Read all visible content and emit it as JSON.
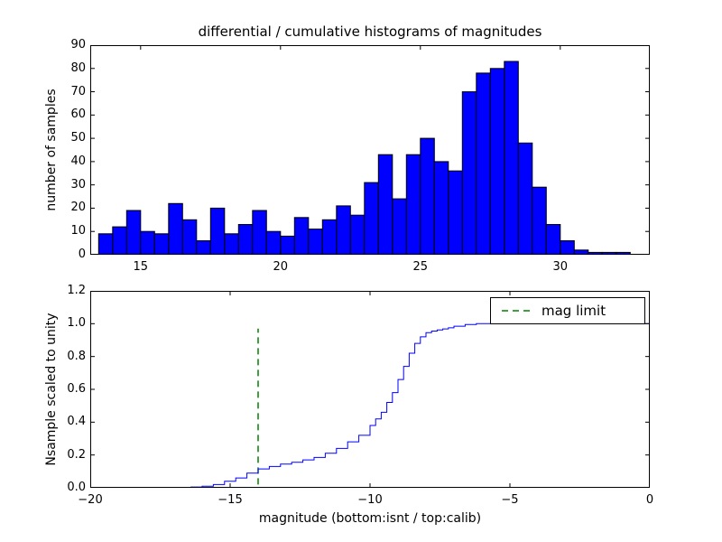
{
  "figure": {
    "title": "differential / cumulative histograms of magnitudes",
    "background": "#ffffff",
    "top": {
      "ylabel": "number of samples"
    },
    "bottom": {
      "ylabel": "Nsample scaled to unity",
      "xlabel": "magnitude (bottom:isnt / top:calib)",
      "legend_label": "mag limit"
    }
  },
  "chart_data": [
    {
      "type": "bar",
      "title": "differential / cumulative histograms of magnitudes",
      "ylabel": "number of samples",
      "xlabel": "",
      "bin_start": 13.5,
      "bin_width": 0.5,
      "values": [
        9,
        12,
        19,
        10,
        9,
        22,
        15,
        6,
        20,
        9,
        13,
        19,
        10,
        8,
        16,
        11,
        15,
        21,
        17,
        31,
        43,
        24,
        43,
        50,
        40,
        36,
        70,
        78,
        80,
        83,
        48,
        29,
        13,
        6,
        2,
        1,
        1,
        1
      ],
      "xlim": [
        13.2,
        33.2
      ],
      "ylim": [
        0,
        90
      ],
      "xticks": [
        15,
        20,
        25,
        30
      ],
      "xtick_labels": [
        "15",
        "20",
        "25",
        "30"
      ],
      "yticks": [
        0,
        10,
        20,
        30,
        40,
        50,
        60,
        70,
        80,
        90
      ],
      "ytick_labels": [
        "0",
        "10",
        "20",
        "30",
        "40",
        "50",
        "60",
        "70",
        "80",
        "90"
      ],
      "bar_color": "#0000ff",
      "bar_edge": "#000000",
      "grid": false
    },
    {
      "type": "line",
      "ylabel": "Nsample scaled to unity",
      "xlabel": "magnitude (bottom:isnt / top:calib)",
      "xlim": [
        -20,
        0
      ],
      "ylim": [
        0,
        1.2
      ],
      "xticks": [
        -20,
        -15,
        -10,
        -5,
        0
      ],
      "xtick_labels": [
        "−20",
        "−15",
        "−10",
        "−5",
        "0"
      ],
      "yticks": [
        0,
        0.2,
        0.4,
        0.6,
        0.8,
        1.0,
        1.2
      ],
      "ytick_labels": [
        "0.0",
        "0.2",
        "0.4",
        "0.6",
        "0.8",
        "1.0",
        "1.2"
      ],
      "line_color": "#0000ff",
      "line_style": "steps",
      "points": [
        [
          -20,
          0
        ],
        [
          -16.4,
          0
        ],
        [
          -16.4,
          0.005
        ],
        [
          -16,
          0.01
        ],
        [
          -15.6,
          0.02
        ],
        [
          -15.2,
          0.04
        ],
        [
          -14.8,
          0.06
        ],
        [
          -14.4,
          0.09
        ],
        [
          -14,
          0.115
        ],
        [
          -13.6,
          0.13
        ],
        [
          -13.2,
          0.145
        ],
        [
          -12.8,
          0.155
        ],
        [
          -12.4,
          0.17
        ],
        [
          -12,
          0.185
        ],
        [
          -11.6,
          0.21
        ],
        [
          -11.2,
          0.24
        ],
        [
          -10.8,
          0.28
        ],
        [
          -10.4,
          0.32
        ],
        [
          -10,
          0.38
        ],
        [
          -9.8,
          0.42
        ],
        [
          -9.6,
          0.46
        ],
        [
          -9.4,
          0.52
        ],
        [
          -9.2,
          0.58
        ],
        [
          -9,
          0.66
        ],
        [
          -8.8,
          0.74
        ],
        [
          -8.6,
          0.82
        ],
        [
          -8.4,
          0.88
        ],
        [
          -8.2,
          0.92
        ],
        [
          -8,
          0.945
        ],
        [
          -7.8,
          0.955
        ],
        [
          -7.6,
          0.962
        ],
        [
          -7.4,
          0.968
        ],
        [
          -7.2,
          0.975
        ],
        [
          -7,
          0.985
        ],
        [
          -6.6,
          0.995
        ],
        [
          -6.2,
          1.0
        ],
        [
          0,
          1.0
        ]
      ],
      "vline": {
        "x": -14,
        "y0": 0.02,
        "y1": 0.97,
        "color": "#008000",
        "style": "dashed",
        "label": "mag limit"
      },
      "legend": {
        "label": "mag limit",
        "position": "upper right"
      },
      "grid": false
    }
  ]
}
